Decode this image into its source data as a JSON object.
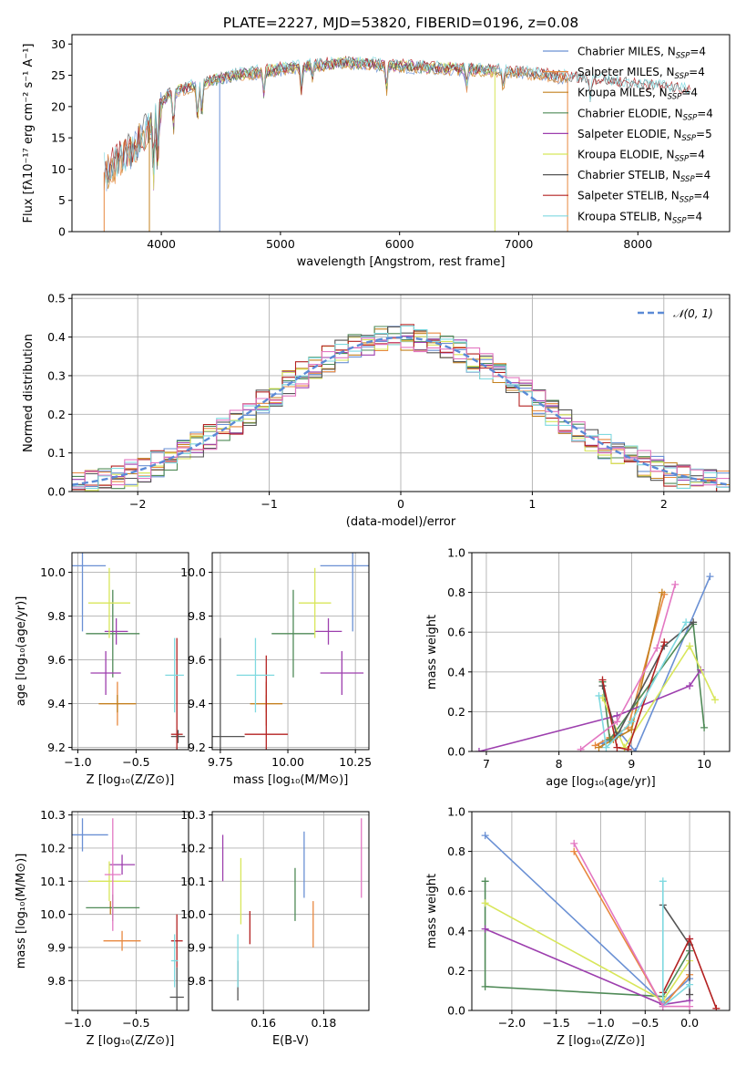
{
  "colors": {
    "Chabrier MILES": "#6a90d4",
    "Salpeter MILES": "#e8883f",
    "Kroupa MILES": "#c3801f",
    "Chabrier ELODIE": "#4f8a57",
    "Salpeter ELODIE": "#9d3fae",
    "Kroupa ELODIE": "#d8e65a",
    "Chabrier STELIB": "#555555",
    "Salpeter STELIB": "#b42222",
    "Kroupa STELIB": "#7fd9e0",
    "gauss": "#5b8ad6"
  },
  "chart_data": [
    {
      "id": "spectrum",
      "type": "line",
      "title": "PLATE=2227, MJD=53820, FIBERID=0196, z=0.08",
      "xlabel": "wavelength [Angstrom, rest frame]",
      "ylabel": "Flux [fλ10⁻¹⁷ erg cm⁻² s⁻¹ A⁻¹]",
      "xlim": [
        3250,
        8770
      ],
      "ylim": [
        0,
        31.5
      ],
      "xticks": [
        "4000",
        "5000",
        "6000",
        "7000",
        "8000"
      ],
      "yticks": [
        "0",
        "5",
        "10",
        "15",
        "20",
        "25",
        "30"
      ],
      "legend_position": "right",
      "legend": [
        {
          "model": "Chabrier MILES",
          "label": "Chabrier MILES, N",
          "sub": "SSP",
          "tail": "=4"
        },
        {
          "model": "Salpeter MILES",
          "label": "Salpeter MILES, N",
          "sub": "SSP",
          "tail": "=4"
        },
        {
          "model": "Kroupa MILES",
          "label": "Kroupa MILES, N",
          "sub": "SSP",
          "tail": "=4"
        },
        {
          "model": "Chabrier ELODIE",
          "label": "Chabrier ELODIE, N",
          "sub": "SSP",
          "tail": "=4"
        },
        {
          "model": "Salpeter ELODIE",
          "label": "Salpeter ELODIE, N",
          "sub": "SSP",
          "tail": "=5"
        },
        {
          "model": "Kroupa ELODIE",
          "label": "Kroupa ELODIE, N",
          "sub": "SSP",
          "tail": "=4"
        },
        {
          "model": "Chabrier STELIB",
          "label": "Chabrier STELIB, N",
          "sub": "SSP",
          "tail": "=4"
        },
        {
          "model": "Salpeter STELIB",
          "label": "Salpeter STELIB, N",
          "sub": "SSP",
          "tail": "=4"
        },
        {
          "model": "Kroupa STELIB",
          "label": "Kroupa STELIB, N",
          "sub": "SSP",
          "tail": "=4"
        }
      ],
      "continuum": [
        [
          3520,
          9.5
        ],
        [
          3700,
          12
        ],
        [
          3900,
          16.5
        ],
        [
          4050,
          22
        ],
        [
          4300,
          23.5
        ],
        [
          4600,
          25
        ],
        [
          5000,
          26
        ],
        [
          5500,
          27
        ],
        [
          6000,
          26.5
        ],
        [
          6500,
          26
        ],
        [
          7000,
          25.5
        ],
        [
          7500,
          24.5
        ],
        [
          8000,
          23.5
        ],
        [
          8450,
          22.5
        ]
      ],
      "absorption_lines": [
        [
          3934,
          9
        ],
        [
          3969,
          8
        ],
        [
          4102,
          6
        ],
        [
          4304,
          6
        ],
        [
          4340,
          5
        ],
        [
          4861,
          4
        ],
        [
          5175,
          4
        ],
        [
          5270,
          2
        ],
        [
          5890,
          4
        ],
        [
          6563,
          3
        ],
        [
          6870,
          3
        ],
        [
          7600,
          3
        ]
      ],
      "model_ranges": {
        "Chabrier MILES": [
          3540,
          7410
        ],
        "Salpeter MILES": [
          3540,
          7410
        ],
        "Kroupa MILES": [
          3540,
          7410
        ],
        "Chabrier ELODIE": [
          3900,
          6800
        ],
        "Salpeter ELODIE": [
          3900,
          6800
        ],
        "Kroupa ELODIE": [
          3900,
          6800
        ],
        "Chabrier STELIB": [
          3250,
          8450
        ],
        "Salpeter STELIB": [
          3250,
          8450
        ],
        "Kroupa STELIB": [
          3250,
          8450
        ]
      }
    },
    {
      "id": "residual-hist",
      "type": "line",
      "xlabel": "(data-model)/error",
      "ylabel": "Normed distribution",
      "xlim": [
        -2.5,
        2.5
      ],
      "ylim": [
        0,
        0.51
      ],
      "xticks": [
        "−2",
        "−1",
        "0",
        "1",
        "2"
      ],
      "yticks": [
        "0.0",
        "0.1",
        "0.2",
        "0.3",
        "0.4",
        "0.5"
      ],
      "legend": "𝒩(0, 1)",
      "legend_position": "top-right",
      "bin_width": 0.1,
      "gaussian": {
        "mean": 0,
        "sigma": 1
      }
    },
    {
      "id": "age-vs-z",
      "type": "scatter",
      "xlabel": "Z [log₁₀(Z/Z⊙)]",
      "ylabel": "age  [log₁₀(age/yr)]",
      "xlim": [
        -1.05,
        -0.05
      ],
      "ylim": [
        9.19,
        10.09
      ],
      "xticks": [
        "−1.0",
        "−0.5"
      ],
      "yticks": [
        "9.2",
        "9.4",
        "9.6",
        "9.8",
        "10.0"
      ],
      "points": [
        {
          "model": "Chabrier MILES",
          "x": -0.96,
          "y": 10.03,
          "xerr": 0.2,
          "yerr": 0.3
        },
        {
          "model": "Salpeter MILES",
          "x": -0.66,
          "y": 9.4,
          "xerr": 0.16,
          "yerr": 0.1
        },
        {
          "model": "Kroupa MILES",
          "x": -0.66,
          "y": 9.4,
          "xerr": 0.16,
          "yerr": 0.04
        },
        {
          "model": "Chabrier ELODIE",
          "x": -0.7,
          "y": 9.72,
          "xerr": 0.23,
          "yerr": 0.2
        },
        {
          "model": "Salpeter ELODIE",
          "x": -0.67,
          "y": 9.73,
          "xerr": 0.1,
          "yerr": 0.06
        },
        {
          "model": "Kroupa ELODIE",
          "x": -0.73,
          "y": 9.86,
          "xerr": 0.18,
          "yerr": 0.16
        },
        {
          "model": "Chabrier STELIB",
          "x": -0.14,
          "y": 9.25,
          "xerr": 0.06,
          "yerr": 0.03
        },
        {
          "model": "Salpeter STELIB",
          "x": -0.15,
          "y": 9.26,
          "xerr": 0.05,
          "yerr": 0.44
        },
        {
          "model": "Kroupa STELIB",
          "x": -0.17,
          "y": 9.53,
          "xerr": 0.08,
          "yerr": 0.17
        },
        {
          "model": "Salpeter ELODIE",
          "x": -0.76,
          "y": 9.54,
          "xerr": 0.13,
          "yerr": 0.1
        }
      ]
    },
    {
      "id": "age-vs-mass",
      "type": "scatter",
      "xlabel": "mass [log₁₀(M/M⊙)]",
      "xlim": [
        9.72,
        10.3
      ],
      "ylim": [
        9.19,
        10.09
      ],
      "xticks": [
        "9.75",
        "10.00",
        "10.25"
      ],
      "yticks": [
        "9.2",
        "9.4",
        "9.6",
        "9.8",
        "10.0"
      ],
      "points": [
        {
          "model": "Chabrier MILES",
          "x": 10.24,
          "y": 10.03,
          "xerr": 0.12,
          "yerr": 0.3
        },
        {
          "model": "Salpeter MILES",
          "x": 9.92,
          "y": 9.4,
          "xerr": 0.06,
          "yerr": 0.1
        },
        {
          "model": "Kroupa MILES",
          "x": 9.92,
          "y": 9.4,
          "xerr": 0.06,
          "yerr": 0.04
        },
        {
          "model": "Chabrier ELODIE",
          "x": 10.02,
          "y": 9.72,
          "xerr": 0.08,
          "yerr": 0.2
        },
        {
          "model": "Salpeter ELODIE",
          "x": 10.15,
          "y": 9.73,
          "xerr": 0.05,
          "yerr": 0.06
        },
        {
          "model": "Kroupa ELODIE",
          "x": 10.1,
          "y": 9.86,
          "xerr": 0.06,
          "yerr": 0.16
        },
        {
          "model": "Chabrier STELIB",
          "x": 9.75,
          "y": 9.25,
          "xerr": 0.09,
          "yerr": 0.45
        },
        {
          "model": "Salpeter STELIB",
          "x": 9.92,
          "y": 9.26,
          "xerr": 0.08,
          "yerr": 0.36
        },
        {
          "model": "Kroupa STELIB",
          "x": 9.88,
          "y": 9.53,
          "xerr": 0.07,
          "yerr": 0.17
        },
        {
          "model": "Salpeter ELODIE",
          "x": 10.2,
          "y": 9.54,
          "xerr": 0.08,
          "yerr": 0.1
        }
      ]
    },
    {
      "id": "weight-vs-age",
      "type": "line",
      "xlabel": "age  [log₁₀(age/yr)]",
      "ylabel": "mass weight",
      "xlim": [
        6.8,
        10.35
      ],
      "ylim": [
        0,
        1
      ],
      "xticks": [
        "7",
        "8",
        "9",
        "10"
      ],
      "yticks": [
        "0.0",
        "0.2",
        "0.4",
        "0.6",
        "0.8",
        "1.0"
      ],
      "series": [
        {
          "model": "Chabrier MILES",
          "x": [
            8.6,
            8.85,
            9.05,
            10.08
          ],
          "y": [
            0.04,
            0.09,
            0.0,
            0.88
          ]
        },
        {
          "model": "Salpeter MILES",
          "x": [
            8.5,
            8.7,
            8.95,
            9.45
          ],
          "y": [
            0.03,
            0.07,
            0.12,
            0.79
          ]
        },
        {
          "model": "Kroupa MILES",
          "x": [
            8.55,
            8.75,
            9.0,
            9.42
          ],
          "y": [
            0.02,
            0.06,
            0.11,
            0.8
          ]
        },
        {
          "model": "Chabrier ELODIE",
          "x": [
            8.6,
            8.7,
            9.85,
            10.0
          ],
          "y": [
            0.35,
            0.06,
            0.64,
            0.12
          ]
        },
        {
          "model": "Salpeter ELODIE",
          "x": [
            6.9,
            8.8,
            9.8,
            9.95
          ],
          "y": [
            0.0,
            0.18,
            0.33,
            0.41
          ]
        },
        {
          "model": "Kroupa ELODIE",
          "x": [
            8.6,
            8.9,
            9.8,
            10.15
          ],
          "y": [
            0.27,
            0.02,
            0.53,
            0.26
          ]
        },
        {
          "model": "Chabrier STELIB",
          "x": [
            8.6,
            8.8,
            9.45,
            9.85
          ],
          "y": [
            0.33,
            0.08,
            0.53,
            0.65
          ]
        },
        {
          "model": "Salpeter STELIB",
          "x": [
            8.6,
            8.8,
            8.95,
            9.45
          ],
          "y": [
            0.36,
            0.02,
            0.01,
            0.55
          ]
        },
        {
          "model": "Kroupa STELIB",
          "x": [
            8.55,
            8.65,
            9.0,
            9.75
          ],
          "y": [
            0.28,
            0.02,
            0.15,
            0.65
          ]
        },
        {
          "model": "pink",
          "x": [
            8.3,
            8.8,
            9.35,
            9.6
          ],
          "y": [
            0.01,
            0.15,
            0.52,
            0.84
          ]
        }
      ]
    },
    {
      "id": "mass-vs-z",
      "type": "scatter",
      "xlabel": "Z [log₁₀(Z/Z⊙)]",
      "ylabel": "mass [log₁₀(M/M⊙)]",
      "xlim": [
        -1.05,
        -0.05
      ],
      "ylim": [
        9.71,
        10.31
      ],
      "xticks": [
        "−1.0",
        "−0.5"
      ],
      "yticks": [
        "9.8",
        "9.9",
        "10.0",
        "10.1",
        "10.2",
        "10.3"
      ],
      "points": [
        {
          "model": "Chabrier MILES",
          "x": -0.96,
          "y": 10.24,
          "xerr": 0.22,
          "yerr": 0.05
        },
        {
          "model": "Salpeter MILES",
          "x": -0.62,
          "y": 9.92,
          "xerr": 0.16,
          "yerr": 0.03
        },
        {
          "model": "Kroupa MILES",
          "x": -0.72,
          "y": 10.02,
          "xerr": 0.01,
          "yerr": 0.02
        },
        {
          "model": "Chabrier ELODIE",
          "x": -0.7,
          "y": 10.02,
          "xerr": 0.23,
          "yerr": 0.04
        },
        {
          "model": "Salpeter ELODIE",
          "x": -0.62,
          "y": 10.15,
          "xerr": 0.11,
          "yerr": 0.03
        },
        {
          "model": "Kroupa ELODIE",
          "x": -0.73,
          "y": 10.1,
          "xerr": 0.18,
          "yerr": 0.06
        },
        {
          "model": "Chabrier STELIB",
          "x": -0.15,
          "y": 9.75,
          "xerr": 0.06,
          "yerr": 0.09
        },
        {
          "model": "Salpeter STELIB",
          "x": -0.15,
          "y": 9.92,
          "xerr": 0.05,
          "yerr": 0.08
        },
        {
          "model": "Kroupa STELIB",
          "x": -0.17,
          "y": 9.86,
          "xerr": 0.03,
          "yerr": 0.08
        },
        {
          "model": "pink",
          "x": -0.7,
          "y": 10.12,
          "xerr": 0.07,
          "yerr": 0.17
        }
      ]
    },
    {
      "id": "mass-vs-ebv",
      "type": "scatter",
      "xlabel": "E(B-V)",
      "xlim": [
        0.143,
        0.195
      ],
      "ylim": [
        9.71,
        10.31
      ],
      "xticks": [
        "0.16",
        "0.18"
      ],
      "yticks": [
        "9.8",
        "9.9",
        "10.0",
        "10.1",
        "10.2",
        "10.3"
      ],
      "points": [
        {
          "model": "Chabrier MILES",
          "x": 0.1735,
          "y": 10.15,
          "yerr": 0.1
        },
        {
          "model": "Salpeter MILES",
          "x": 0.1765,
          "y": 9.97,
          "yerr": 0.07
        },
        {
          "model": "Chabrier ELODIE",
          "x": 0.1705,
          "y": 10.06,
          "yerr": 0.08
        },
        {
          "model": "Salpeter ELODIE",
          "x": 0.1465,
          "y": 10.17,
          "yerr": 0.07
        },
        {
          "model": "Kroupa ELODIE",
          "x": 0.1525,
          "y": 10.07,
          "yerr": 0.1
        },
        {
          "model": "Chabrier STELIB",
          "x": 0.1515,
          "y": 9.8,
          "yerr": 0.06
        },
        {
          "model": "Salpeter STELIB",
          "x": 0.1555,
          "y": 9.96,
          "yerr": 0.05
        },
        {
          "model": "Kroupa STELIB",
          "x": 0.1515,
          "y": 9.86,
          "yerr": 0.08
        },
        {
          "model": "pink",
          "x": 0.1925,
          "y": 10.17,
          "yerr": 0.12
        }
      ]
    },
    {
      "id": "weight-vs-z",
      "type": "line",
      "xlabel": "Z [log₁₀(Z/Z⊙)]",
      "ylabel": "mass weight",
      "xlim": [
        -2.45,
        0.45
      ],
      "ylim": [
        0,
        1
      ],
      "xticks": [
        "−2.0",
        "−1.5",
        "−1.0",
        "−0.5",
        "0.0"
      ],
      "yticks": [
        "0.0",
        "0.2",
        "0.4",
        "0.6",
        "0.8",
        "1.0"
      ],
      "series": [
        {
          "model": "Chabrier MILES",
          "x": [
            -2.3,
            -0.3,
            0.0
          ],
          "y": [
            0.88,
            0.04,
            0.16
          ]
        },
        {
          "model": "Salpeter MILES",
          "x": [
            -1.3,
            -0.3,
            0.0
          ],
          "y": [
            0.8,
            0.02,
            0.18
          ]
        },
        {
          "model": "Chabrier ELODIE",
          "x": [
            -2.3,
            -2.3,
            -0.3,
            0.0
          ],
          "y": [
            0.65,
            0.12,
            0.07,
            0.3
          ]
        },
        {
          "model": "Salpeter ELODIE",
          "x": [
            -2.3,
            -0.3,
            0.0,
            0.0
          ],
          "y": [
            0.41,
            0.03,
            0.05,
            0.36
          ]
        },
        {
          "model": "Kroupa ELODIE",
          "x": [
            -2.3,
            -0.3,
            0.0
          ],
          "y": [
            0.54,
            0.05,
            0.25
          ]
        },
        {
          "model": "Chabrier STELIB",
          "x": [
            -0.3,
            0.0,
            0.0
          ],
          "y": [
            0.53,
            0.33,
            0.08
          ]
        },
        {
          "model": "Salpeter STELIB",
          "x": [
            -0.3,
            0.0,
            0.3
          ],
          "y": [
            0.09,
            0.36,
            0.01
          ]
        },
        {
          "model": "Kroupa STELIB",
          "x": [
            -0.3,
            -0.3,
            0.0
          ],
          "y": [
            0.65,
            0.02,
            0.13
          ]
        },
        {
          "model": "pink",
          "x": [
            -1.3,
            -0.3,
            0.0
          ],
          "y": [
            0.84,
            0.02,
            0.02
          ]
        }
      ]
    }
  ]
}
